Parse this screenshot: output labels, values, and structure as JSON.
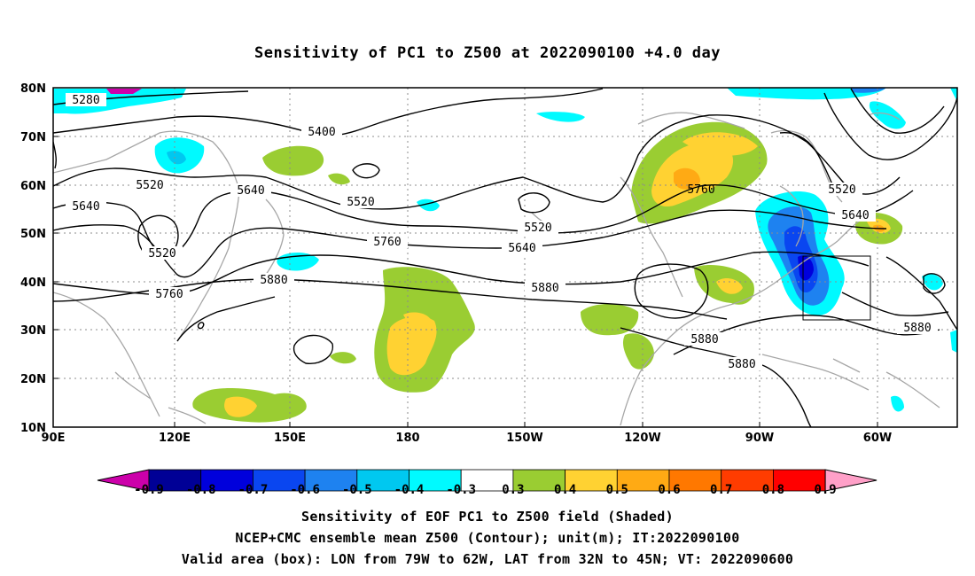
{
  "title": "Sensitivity of PC1 to Z500 at 2022090100 +4.0 day",
  "lat_labels": [
    "80N",
    "70N",
    "60N",
    "50N",
    "40N",
    "30N",
    "20N",
    "10N"
  ],
  "lon_labels": [
    "90E",
    "120E",
    "150E",
    "180",
    "150W",
    "120W",
    "90W",
    "60W"
  ],
  "contour_labels": [
    {
      "text": "5280"
    },
    {
      "text": "5400"
    },
    {
      "text": "5520"
    },
    {
      "text": "5640"
    },
    {
      "text": "5640"
    },
    {
      "text": "5520"
    },
    {
      "text": "5520"
    },
    {
      "text": "5760"
    },
    {
      "text": "5520"
    },
    {
      "text": "5640"
    },
    {
      "text": "5880"
    },
    {
      "text": "5760"
    },
    {
      "text": "5880"
    },
    {
      "text": "5760"
    },
    {
      "text": "5520"
    },
    {
      "text": "5640"
    },
    {
      "text": "5880"
    },
    {
      "text": "5880"
    },
    {
      "text": "5880"
    }
  ],
  "colorbar": {
    "labels": [
      "-0.9",
      "-0.8",
      "-0.7",
      "-0.6",
      "-0.5",
      "-0.4",
      "-0.3",
      "0.3",
      "0.4",
      "0.5",
      "0.6",
      "0.7",
      "0.8",
      "0.9"
    ],
    "colors": [
      "#000096",
      "#0000dc",
      "#0a46f0",
      "#1e82f0",
      "#00c8f0",
      "#00faff",
      "#ffffff",
      "#9acd32",
      "#ffd232",
      "#ffaa14",
      "#ff7800",
      "#ff3c00",
      "#ff0000"
    ],
    "left_arrow": "#cc00aa",
    "right_arrow": "#ffa0c8"
  },
  "footer": {
    "line1": "Sensitivity of EOF PC1 to Z500 field (Shaded)",
    "line2": "NCEP+CMC ensemble mean Z500 (Contour); unit(m); IT:2022090100",
    "line3": "Valid area (box): LON from 79W to 62W, LAT from 32N to 45N; VT: 2022090600"
  }
}
